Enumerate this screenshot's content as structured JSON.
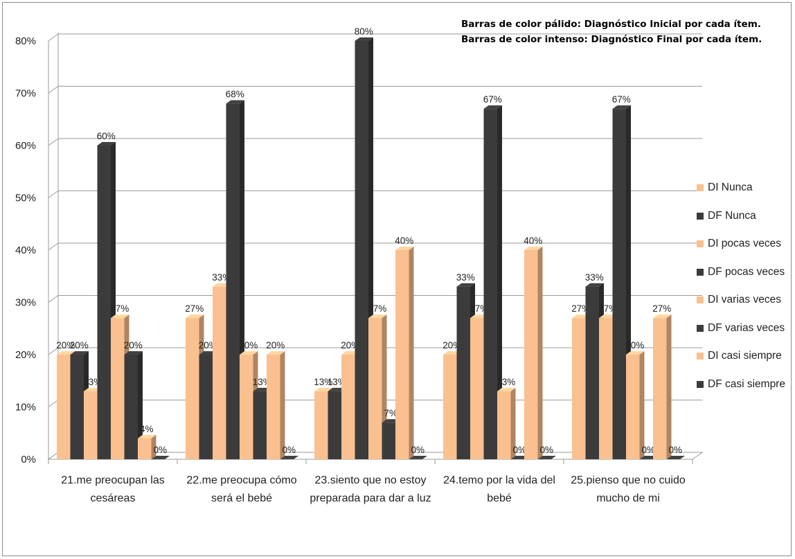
{
  "chart_data": {
    "type": "bar",
    "notes": [
      "Barras de color pálido: Diagnóstico Inicial por cada ítem.",
      "Barras de color intenso: Diagnóstico Final por cada ítem."
    ],
    "categories": [
      "21.me preocupan las cesáreas",
      "22.me preocupa cómo será el bebé",
      "23.siento que no estoy preparada para dar a luz",
      "24.temo por la vida del bebé",
      "25.pienso que no cuido mucho de mi"
    ],
    "series": [
      {
        "name": "DI Nunca",
        "color": "#fac08f",
        "values": [
          20,
          27,
          13,
          20,
          27
        ]
      },
      {
        "name": "DF Nunca",
        "color": "#3b3b3b",
        "values": [
          20,
          20,
          13,
          33,
          33
        ]
      },
      {
        "name": "DI pocas veces",
        "color": "#fac08f",
        "values": [
          13,
          33,
          20,
          27,
          27
        ]
      },
      {
        "name": "DF pocas veces",
        "color": "#3b3b3b",
        "values": [
          60,
          68,
          80,
          67,
          67
        ]
      },
      {
        "name": "DI varias veces",
        "color": "#fac08f",
        "values": [
          27,
          20,
          27,
          13,
          20
        ]
      },
      {
        "name": "DF varias veces",
        "color": "#3b3b3b",
        "values": [
          20,
          13,
          7,
          0,
          0
        ]
      },
      {
        "name": "DI casi siempre",
        "color": "#fac08f",
        "values": [
          4,
          20,
          40,
          40,
          27
        ]
      },
      {
        "name": "DF casi siempre",
        "color": "#3b3b3b",
        "values": [
          0,
          0,
          0,
          0,
          0
        ]
      }
    ],
    "data_labels": [
      [
        "20%",
        "20%",
        "13%",
        "60%",
        "27%",
        "20%",
        "4%",
        "0%"
      ],
      [
        "27%",
        "20%",
        "33%",
        "68%",
        "20%",
        "13%",
        "20%",
        "0%"
      ],
      [
        "13%",
        "13%",
        "20%",
        "80%",
        "27%",
        "7%",
        "40%",
        "0%"
      ],
      [
        "20%",
        "33%",
        "27%",
        "67%",
        "13%",
        "0%",
        "40%",
        "0%"
      ],
      [
        "27%",
        "33%",
        "27%",
        "67%",
        "20%",
        "0%",
        "27%",
        "0%"
      ]
    ],
    "yticks": [
      "0%",
      "10%",
      "20%",
      "30%",
      "40%",
      "50%",
      "60%",
      "70%",
      "80%"
    ],
    "ylim": [
      0,
      80
    ],
    "grid": true,
    "legend_position": "right",
    "colors": {
      "inicial": "#fac08f",
      "final": "#3b3b3b",
      "grid": "#9a9a9a"
    }
  }
}
